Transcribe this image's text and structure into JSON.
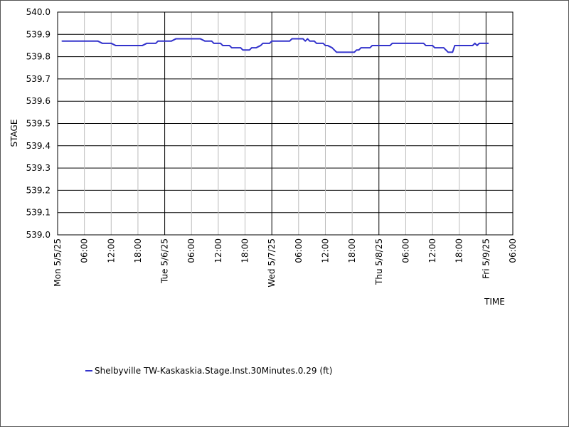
{
  "chart_data": {
    "type": "line",
    "title": "",
    "xlabel": "TIME",
    "ylabel": "STAGE",
    "ylim": [
      539.0,
      540.0
    ],
    "y_ticks": [
      "540.0",
      "539.9",
      "539.8",
      "539.7",
      "539.6",
      "539.5",
      "539.4",
      "539.3",
      "539.2",
      "539.1",
      "539.0"
    ],
    "x_range_hours": [
      0,
      96
    ],
    "x_ticks": [
      {
        "hour": 0,
        "label": "Mon 5/5/25",
        "major": true
      },
      {
        "hour": 6,
        "label": "06:00",
        "major": false
      },
      {
        "hour": 12,
        "label": "12:00",
        "major": false
      },
      {
        "hour": 18,
        "label": "18:00",
        "major": false
      },
      {
        "hour": 24,
        "label": "Tue 5/6/25",
        "major": true
      },
      {
        "hour": 30,
        "label": "06:00",
        "major": false
      },
      {
        "hour": 36,
        "label": "12:00",
        "major": false
      },
      {
        "hour": 42,
        "label": "18:00",
        "major": false
      },
      {
        "hour": 48,
        "label": "Wed 5/7/25",
        "major": true
      },
      {
        "hour": 54,
        "label": "06:00",
        "major": false
      },
      {
        "hour": 60,
        "label": "12:00",
        "major": false
      },
      {
        "hour": 66,
        "label": "18:00",
        "major": false
      },
      {
        "hour": 72,
        "label": "Thu 5/8/25",
        "major": true
      },
      {
        "hour": 78,
        "label": "06:00",
        "major": false
      },
      {
        "hour": 84,
        "label": "12:00",
        "major": false
      },
      {
        "hour": 90,
        "label": "18:00",
        "major": false
      },
      {
        "hour": 96,
        "label": "Fri 5/9/25",
        "major": true
      },
      {
        "hour": 102,
        "label": "06:00",
        "major": false
      }
    ],
    "x_max_hours": 102,
    "grid": true,
    "legend_position": "bottom-left",
    "series": [
      {
        "name": "Shelbyville TW-Kaskaskia.Stage.Inst.30Minutes.0.29 (ft)",
        "color": "#3333cc",
        "points": [
          [
            1,
            539.87
          ],
          [
            9,
            539.87
          ],
          [
            10,
            539.86
          ],
          [
            12,
            539.86
          ],
          [
            13,
            539.85
          ],
          [
            19,
            539.85
          ],
          [
            20,
            539.86
          ],
          [
            22,
            539.86
          ],
          [
            22.5,
            539.87
          ],
          [
            25.5,
            539.87
          ],
          [
            26.5,
            539.88
          ],
          [
            32,
            539.88
          ],
          [
            33,
            539.87
          ],
          [
            34.5,
            539.87
          ],
          [
            35,
            539.86
          ],
          [
            36.5,
            539.86
          ],
          [
            37,
            539.85
          ],
          [
            38.5,
            539.85
          ],
          [
            39,
            539.84
          ],
          [
            41,
            539.84
          ],
          [
            41.5,
            539.83
          ],
          [
            43,
            539.83
          ],
          [
            43.5,
            539.84
          ],
          [
            44.5,
            539.84
          ],
          [
            45.5,
            539.85
          ],
          [
            46,
            539.86
          ],
          [
            47.5,
            539.86
          ],
          [
            48,
            539.87
          ],
          [
            52,
            539.87
          ],
          [
            52.5,
            539.88
          ],
          [
            55,
            539.88
          ],
          [
            55.5,
            539.87
          ],
          [
            56,
            539.88
          ],
          [
            56.5,
            539.87
          ],
          [
            57.5,
            539.87
          ],
          [
            58,
            539.86
          ],
          [
            59.5,
            539.86
          ],
          [
            60,
            539.85
          ],
          [
            60.5,
            539.85
          ],
          [
            61.5,
            539.84
          ],
          [
            62.5,
            539.82
          ],
          [
            66.5,
            539.82
          ],
          [
            67,
            539.83
          ],
          [
            67.5,
            539.83
          ],
          [
            68,
            539.84
          ],
          [
            70,
            539.84
          ],
          [
            70.5,
            539.85
          ],
          [
            74.5,
            539.85
          ],
          [
            75,
            539.86
          ],
          [
            82,
            539.86
          ],
          [
            82.5,
            539.85
          ],
          [
            84,
            539.85
          ],
          [
            84.5,
            539.84
          ],
          [
            86.5,
            539.84
          ],
          [
            87.5,
            539.82
          ],
          [
            88.5,
            539.82
          ],
          [
            89,
            539.85
          ],
          [
            93,
            539.85
          ],
          [
            93.5,
            539.86
          ],
          [
            94,
            539.85
          ],
          [
            94.5,
            539.86
          ],
          [
            96.5,
            539.86
          ]
        ]
      }
    ]
  },
  "legend": {
    "label": "Shelbyville TW-Kaskaskia.Stage.Inst.30Minutes.0.29 (ft)",
    "color": "#3333cc"
  }
}
